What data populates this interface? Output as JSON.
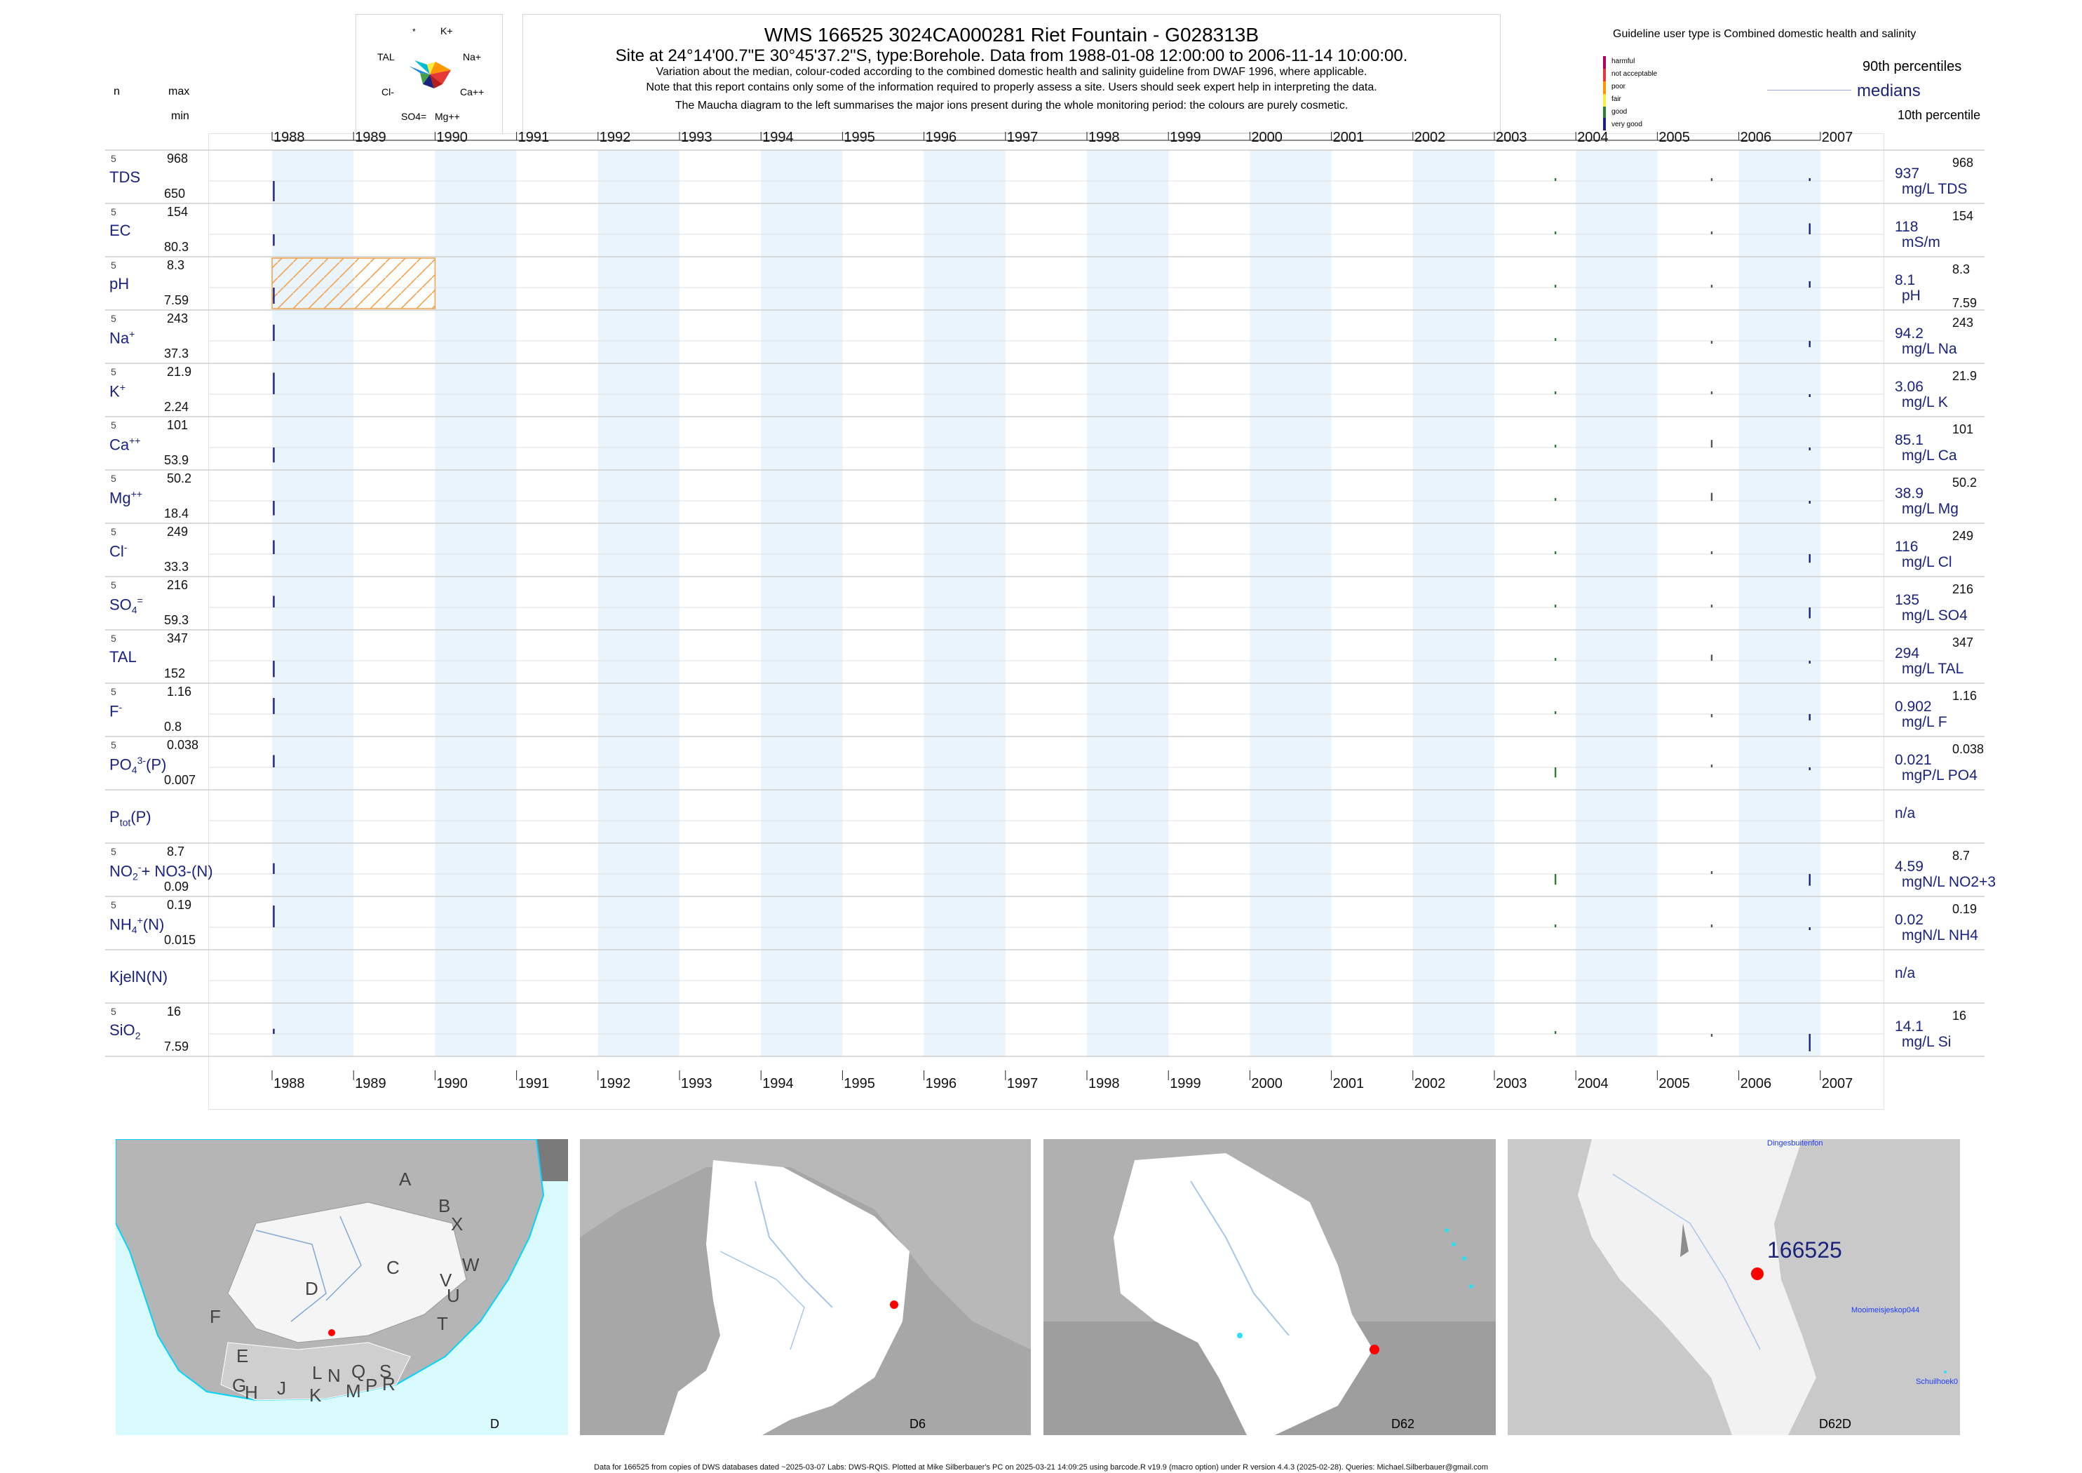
{
  "header": {
    "title": "WMS 166525  3024CA000281 Riet Fountain - G028313B",
    "subtitle": "Site at 24°14'00.7\"E 30°45'37.2\"S, type:Borehole.  Data from 1988-01-08 12:00:00 to 2006-11-14 10:00:00.",
    "note1": "Variation about the median,  colour-coded according to the combined domestic health and salinity guideline from DWAF 1996, where applicable.",
    "note2": "Note that this report contains only some of the information required to properly assess a site. Users should seek expert help in interpreting the data.",
    "note3": "The Maucha diagram to the left summarises the major ions present during the whole monitoring period: the colours are purely cosmetic."
  },
  "left_header": {
    "n": "n",
    "max": "max",
    "min": "min"
  },
  "maucha": {
    "labels": [
      "*",
      "K+",
      "TAL",
      "Na+",
      "Cl-",
      "Ca++",
      "SO4=",
      "Mg++"
    ],
    "colors": [
      "#1e88e5",
      "#00bcd4",
      "#ffeb3b",
      "#ff9800",
      "#e53935",
      "#b71c1c",
      "#1a237e",
      "#43a047"
    ]
  },
  "legend": {
    "title": "Guideline user type is Combined domestic health and salinity",
    "classes": [
      {
        "label": "harmful",
        "color": "#b0006d"
      },
      {
        "label": "not acceptable",
        "color": "#e53935"
      },
      {
        "label": "poor",
        "color": "#ff9800"
      },
      {
        "label": "fair",
        "color": "#ffeb3b"
      },
      {
        "label": "good",
        "color": "#2e7d32"
      },
      {
        "label": "very good",
        "color": "#1a237e"
      }
    ],
    "p90": "90th percentiles",
    "median": "medians",
    "p10": "10th percentile"
  },
  "years": [
    "1988",
    "1989",
    "1990",
    "1991",
    "1992",
    "1993",
    "1994",
    "1995",
    "1996",
    "1997",
    "1998",
    "1999",
    "2000",
    "2001",
    "2002",
    "2003",
    "2004",
    "2005",
    "2006",
    "2007"
  ],
  "chart_data": {
    "type": "line",
    "x_range": [
      "1988",
      "2007"
    ],
    "sample_dates": [
      "1988-01-08",
      "2003-10-01",
      "2005-09-01",
      "2006-11-14"
    ],
    "series": [
      {
        "label": "TDS",
        "n": "5",
        "max": "968",
        "min": "650",
        "median": "937",
        "unit": "mg/L TDS",
        "values": [
          650,
          937,
          955,
          968
        ]
      },
      {
        "label": "EC",
        "n": "5",
        "max": "154",
        "min": "80.3",
        "median": "118",
        "unit": "mS/m",
        "values": [
          80.3,
          118,
          120,
          154
        ]
      },
      {
        "label": "pH",
        "n": "5",
        "max": "8.3",
        "min": "7.59",
        "median": "8.1",
        "unit": "pH",
        "values": [
          7.59,
          8.1,
          8.1,
          8.3
        ]
      },
      {
        "label": "Na",
        "sup": "+",
        "n": "5",
        "max": "243",
        "min": "37.3",
        "median": "94.2",
        "unit": "mg/L Na",
        "values": [
          243,
          94.2,
          90,
          37.3
        ]
      },
      {
        "label": "K",
        "sup": "+",
        "n": "5",
        "max": "21.9",
        "min": "2.24",
        "median": "3.06",
        "unit": "mg/L K",
        "values": [
          21.9,
          3.06,
          3.5,
          2.24
        ]
      },
      {
        "label": "Ca",
        "sup": "++",
        "n": "5",
        "max": "101",
        "min": "53.9",
        "median": "85.1",
        "unit": "mg/L Ca",
        "values": [
          53.9,
          85.1,
          101,
          80
        ]
      },
      {
        "label": "Mg",
        "sup": "++",
        "n": "5",
        "max": "50.2",
        "min": "18.4",
        "median": "38.9",
        "unit": "mg/L Mg",
        "values": [
          18.4,
          38.9,
          50.2,
          36
        ]
      },
      {
        "label": "Cl",
        "sup": "-",
        "n": "5",
        "max": "249",
        "min": "33.3",
        "median": "116",
        "unit": "mg/L Cl",
        "values": [
          249,
          116,
          116,
          33.3
        ]
      },
      {
        "label": "SO",
        "sub": "4",
        "sup": "=",
        "n": "5",
        "max": "216",
        "min": "59.3",
        "median": "135",
        "unit": "mg/L SO4",
        "values": [
          216,
          135,
          140,
          59.3
        ]
      },
      {
        "label": "TAL",
        "n": "5",
        "max": "347",
        "min": "152",
        "median": "294",
        "unit": "mg/L TAL",
        "values": [
          152,
          294,
          347,
          290
        ]
      },
      {
        "label": "F",
        "sup": "-",
        "n": "5",
        "max": "1.16",
        "min": "0.8",
        "median": "0.902",
        "unit": "mg/L F",
        "values": [
          1.16,
          0.902,
          0.85,
          0.8
        ]
      },
      {
        "label": "PO",
        "sub": "4",
        "sup": "3-",
        "suffix": "(P)",
        "n": "5",
        "max": "0.038",
        "min": "0.007",
        "median": "0.021",
        "unit": "mgP/L PO4",
        "values": [
          0.038,
          0.007,
          0.021,
          0.02
        ]
      },
      {
        "label": "P",
        "sub": "tot",
        "suffix": "(P)",
        "n": "",
        "max": "",
        "min": "",
        "median": "n/a",
        "unit": "",
        "values": []
      },
      {
        "label": "NO",
        "sub": "2",
        "sup": "-",
        "suffix": "+ NO3-(N)",
        "n": "5",
        "max": "8.7",
        "min": "0.09",
        "median": "4.59",
        "unit": "mgN/L NO2+3",
        "values": [
          8.7,
          0.5,
          4.59,
          0.09
        ]
      },
      {
        "label": "NH",
        "sub": "4",
        "sup": "+",
        "suffix": "(N)",
        "n": "5",
        "max": "0.19",
        "min": "0.015",
        "median": "0.02",
        "unit": "mgN/L NH4",
        "values": [
          0.19,
          0.02,
          0.02,
          0.015
        ]
      },
      {
        "label": "KjelN(N)",
        "n": "",
        "max": "",
        "min": "",
        "median": "n/a",
        "unit": "",
        "values": []
      },
      {
        "label": "SiO",
        "sub": "2",
        "n": "5",
        "max": "16",
        "min": "7.59",
        "median": "14.1",
        "unit": "mg/L Si",
        "values": [
          16,
          14.1,
          14,
          7.59
        ]
      }
    ]
  },
  "maps": [
    {
      "caption": "D",
      "letters": [
        "A",
        "B",
        "X",
        "W",
        "C",
        "V",
        "U",
        "D",
        "T",
        "F",
        "E",
        "L",
        "N",
        "Q",
        "S",
        "R",
        "G",
        "H",
        "J",
        "K",
        "M",
        "P"
      ]
    },
    {
      "caption": "D6"
    },
    {
      "caption": "D62"
    },
    {
      "caption": "D62D",
      "site": "166525",
      "places": [
        "Mooimeisjeskop044",
        "Schuilhoek0",
        "Dingesbuitenfon"
      ]
    }
  ],
  "footer": "Data for 166525 from copies of DWS databases dated ~2025-03-07 Labs: DWS-RQIS. Plotted at Mike Silberbauer's PC on 2025-03-21 14:09:25 using barcode.R v19.9 (macro option) under R version 4.4.3 (2025-02-28). Queries: Michael.Silberbauer@gmail.com"
}
